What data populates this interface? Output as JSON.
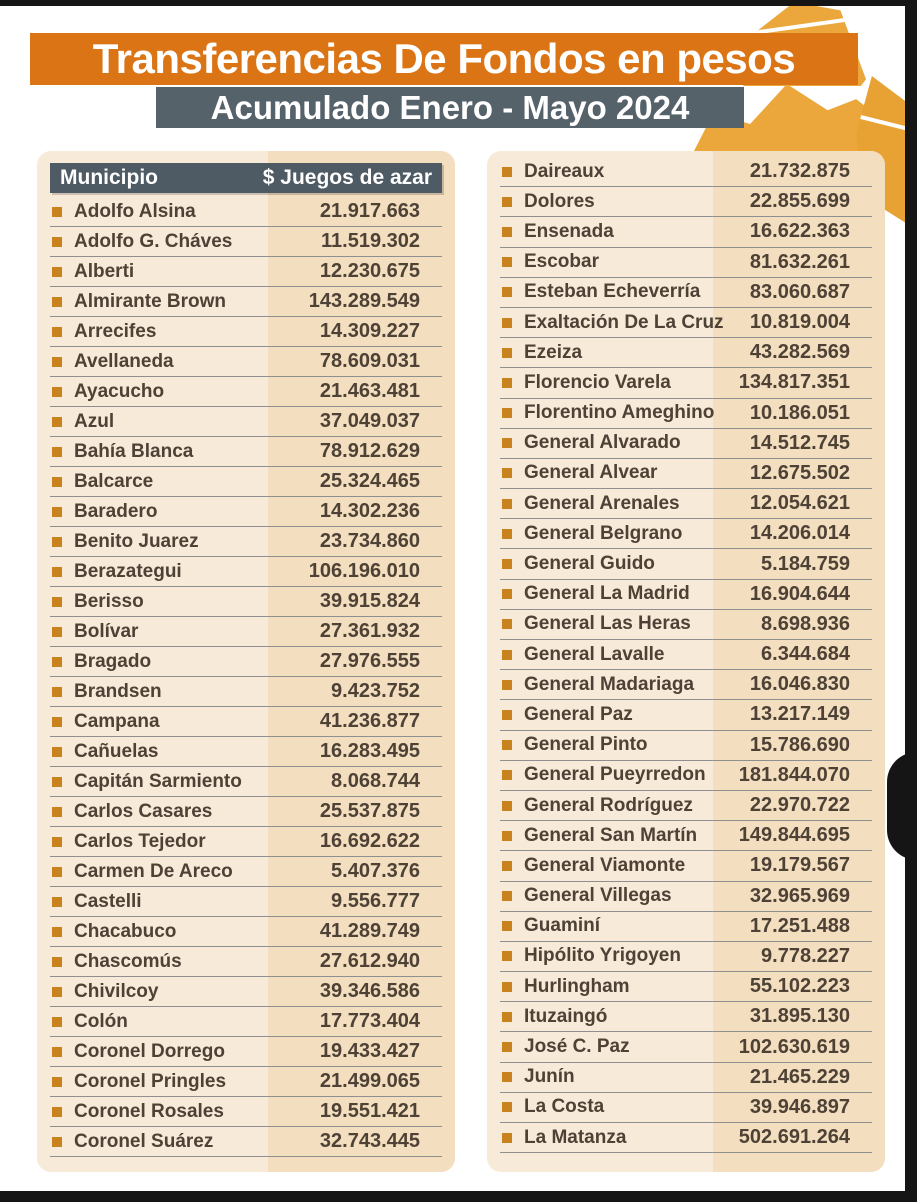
{
  "page": {
    "title_bar": "Transferencias De Fondos en pesos",
    "subtitle_bar": "Acumulado Enero - Mayo 2024"
  },
  "table_header": {
    "municipality": "Municipio",
    "amount": "$ Juegos de azar"
  },
  "colors": {
    "title_bar_bg": "#DB7414",
    "subtitle_bar_bg": "#56626A",
    "table_header_bg": "#4E5A64",
    "panel_bg": "#F8EAD9",
    "value_column_bg": "#F3DEBF",
    "row_text": "#4E4236",
    "bullet": "#C8831F",
    "decoration_gold": "#EBA73B"
  },
  "chart_data": {
    "type": "table",
    "title": "Transferencias De Fondos en pesos",
    "subtitle": "Acumulado Enero - Mayo 2024",
    "columns": [
      "Municipio",
      "$ Juegos de azar"
    ],
    "left_rows": [
      [
        "Adolfo Alsina",
        "21.917.663"
      ],
      [
        "Adolfo G. Cháves",
        "11.519.302"
      ],
      [
        "Alberti",
        "12.230.675"
      ],
      [
        "Almirante Brown",
        "143.289.549"
      ],
      [
        "Arrecifes",
        "14.309.227"
      ],
      [
        "Avellaneda",
        "78.609.031"
      ],
      [
        "Ayacucho",
        "21.463.481"
      ],
      [
        "Azul",
        "37.049.037"
      ],
      [
        "Bahía Blanca",
        "78.912.629"
      ],
      [
        "Balcarce",
        "25.324.465"
      ],
      [
        "Baradero",
        "14.302.236"
      ],
      [
        "Benito Juarez",
        "23.734.860"
      ],
      [
        "Berazategui",
        "106.196.010"
      ],
      [
        "Berisso",
        "39.915.824"
      ],
      [
        "Bolívar",
        "27.361.932"
      ],
      [
        "Bragado",
        "27.976.555"
      ],
      [
        "Brandsen",
        "9.423.752"
      ],
      [
        "Campana",
        "41.236.877"
      ],
      [
        "Cañuelas",
        "16.283.495"
      ],
      [
        "Capitán Sarmiento",
        "8.068.744"
      ],
      [
        "Carlos Casares",
        "25.537.875"
      ],
      [
        "Carlos Tejedor",
        "16.692.622"
      ],
      [
        "Carmen De Areco",
        "5.407.376"
      ],
      [
        "Castelli",
        "9.556.777"
      ],
      [
        "Chacabuco",
        "41.289.749"
      ],
      [
        "Chascomús",
        "27.612.940"
      ],
      [
        "Chivilcoy",
        "39.346.586"
      ],
      [
        "Colón",
        "17.773.404"
      ],
      [
        "Coronel Dorrego",
        "19.433.427"
      ],
      [
        "Coronel Pringles",
        "21.499.065"
      ],
      [
        "Coronel Rosales",
        "19.551.421"
      ],
      [
        "Coronel Suárez",
        "32.743.445"
      ]
    ],
    "right_rows": [
      [
        "Daireaux",
        "21.732.875"
      ],
      [
        "Dolores",
        "22.855.699"
      ],
      [
        "Ensenada",
        "16.622.363"
      ],
      [
        "Escobar",
        "81.632.261"
      ],
      [
        "Esteban Echeverría",
        "83.060.687"
      ],
      [
        "Exaltación De La Cruz",
        "10.819.004"
      ],
      [
        "Ezeiza",
        "43.282.569"
      ],
      [
        "Florencio Varela",
        "134.817.351"
      ],
      [
        "Florentino Ameghino",
        "10.186.051"
      ],
      [
        "General Alvarado",
        "14.512.745"
      ],
      [
        "General Alvear",
        "12.675.502"
      ],
      [
        "General Arenales",
        "12.054.621"
      ],
      [
        "General Belgrano",
        "14.206.014"
      ],
      [
        "General Guido",
        "5.184.759"
      ],
      [
        "General La Madrid",
        "16.904.644"
      ],
      [
        "General Las Heras",
        "8.698.936"
      ],
      [
        "General Lavalle",
        "6.344.684"
      ],
      [
        "General Madariaga",
        "16.046.830"
      ],
      [
        "General Paz",
        "13.217.149"
      ],
      [
        "General Pinto",
        "15.786.690"
      ],
      [
        "General Pueyrredon",
        "181.844.070"
      ],
      [
        "General Rodríguez",
        "22.970.722"
      ],
      [
        "General San Martín",
        "149.844.695"
      ],
      [
        "General Viamonte",
        "19.179.567"
      ],
      [
        "General Villegas",
        "32.965.969"
      ],
      [
        "Guaminí",
        "17.251.488"
      ],
      [
        "Hipólito Yrigoyen",
        "9.778.227"
      ],
      [
        "Hurlingham",
        "55.102.223"
      ],
      [
        "Ituzaingó",
        "31.895.130"
      ],
      [
        "José C. Paz",
        "102.630.619"
      ],
      [
        "Junín",
        "21.465.229"
      ],
      [
        "La Costa",
        "39.946.897"
      ],
      [
        "La Matanza",
        "502.691.264"
      ]
    ]
  }
}
